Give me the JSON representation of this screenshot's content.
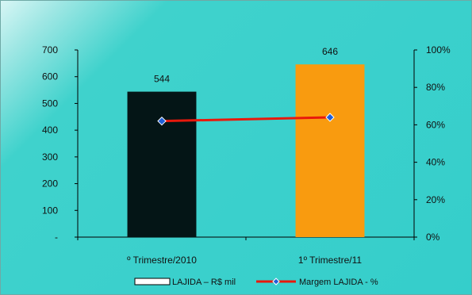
{
  "chart_data": {
    "type": "bar",
    "categories": [
      "º Trimestre/2010",
      "1º Trimestre/11"
    ],
    "series": [
      {
        "name": "LAJIDA – R$ mil",
        "type": "bar",
        "axis": "left",
        "values": [
          544,
          646
        ],
        "colors": [
          "#041516",
          "#f99b0f"
        ],
        "data_labels": [
          "544",
          "646"
        ]
      },
      {
        "name": "Margem LAJIDA - %",
        "type": "line",
        "axis": "right",
        "values": [
          62,
          64
        ],
        "color": "#e8190c",
        "marker_color": "#1f5fd8"
      }
    ],
    "y_left": {
      "ylim": [
        0,
        700
      ],
      "ticks": [
        0,
        100,
        200,
        300,
        400,
        500,
        600,
        700
      ],
      "tick_labels": [
        "-",
        "100",
        "200",
        "300",
        "400",
        "500",
        "600",
        "700"
      ]
    },
    "y_right": {
      "ylim": [
        0,
        100
      ],
      "ticks": [
        0,
        20,
        40,
        60,
        80,
        100
      ],
      "tick_labels": [
        "0%",
        "20%",
        "40%",
        "60%",
        "80%",
        "100%"
      ]
    },
    "legend_position": "bottom",
    "grid": false
  }
}
